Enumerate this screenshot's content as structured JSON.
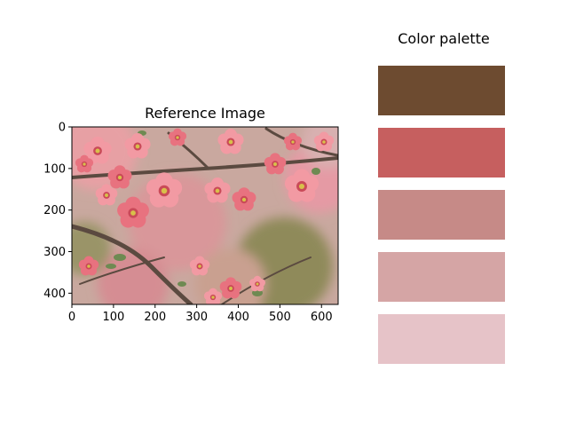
{
  "chart_data": [
    {
      "type": "image",
      "title": "Reference Image",
      "xlim": [
        0,
        640
      ],
      "ylim": [
        427,
        0
      ],
      "xticks": [
        0,
        100,
        200,
        300,
        400,
        500,
        600
      ],
      "yticks": [
        0,
        100,
        200,
        300,
        400
      ],
      "grid": false,
      "image_subject": "pink quince blossoms on branches"
    },
    {
      "type": "palette",
      "title": "Color palette",
      "colors": [
        "#6d4b30",
        "#c65f5f",
        "#c68a87",
        "#d5a5a5",
        "#e6c3c8"
      ]
    }
  ],
  "image_colors": {
    "background_blur": "#c9a89f",
    "blossom_light": "#f29aa3",
    "blossom_mid": "#e8727f",
    "blossom_dark": "#c94a58",
    "center": "#d8c04a",
    "branch": "#5b4a40",
    "leaf": "#6e8a52"
  }
}
